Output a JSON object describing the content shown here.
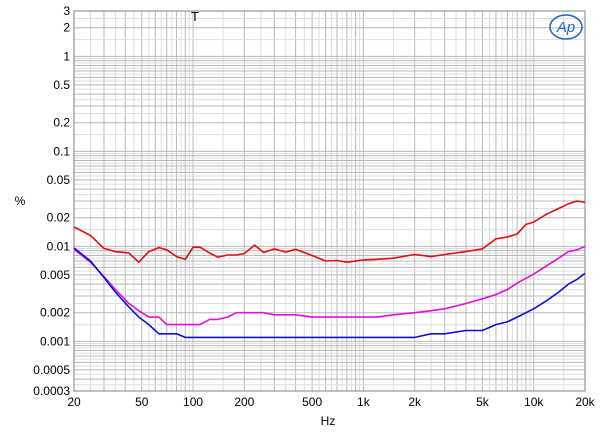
{
  "chart_data": {
    "type": "line",
    "title": "",
    "xlabel": "Hz",
    "ylabel": "%",
    "xscale": "log",
    "yscale": "log",
    "xlim": [
      20,
      20000
    ],
    "ylim": [
      0.0003,
      3
    ],
    "grid": true,
    "legend": "none",
    "annotation": "T",
    "logo": "Ap",
    "x_ticks": [
      {
        "v": 20,
        "label": "20"
      },
      {
        "v": 50,
        "label": "50"
      },
      {
        "v": 100,
        "label": "100"
      },
      {
        "v": 200,
        "label": "200"
      },
      {
        "v": 500,
        "label": "500"
      },
      {
        "v": 1000,
        "label": "1k"
      },
      {
        "v": 2000,
        "label": "2k"
      },
      {
        "v": 5000,
        "label": "5k"
      },
      {
        "v": 10000,
        "label": "10k"
      },
      {
        "v": 20000,
        "label": "20k"
      }
    ],
    "y_ticks": [
      {
        "v": 3,
        "label": "3"
      },
      {
        "v": 2,
        "label": "2"
      },
      {
        "v": 1,
        "label": "1"
      },
      {
        "v": 0.5,
        "label": "0.5"
      },
      {
        "v": 0.2,
        "label": "0.2"
      },
      {
        "v": 0.1,
        "label": "0.1"
      },
      {
        "v": 0.05,
        "label": "0.05"
      },
      {
        "v": 0.02,
        "label": "0.02"
      },
      {
        "v": 0.01,
        "label": "0.01"
      },
      {
        "v": 0.005,
        "label": "0.005"
      },
      {
        "v": 0.002,
        "label": "0.002"
      },
      {
        "v": 0.001,
        "label": "0.001"
      },
      {
        "v": 0.0005,
        "label": "0.0005"
      },
      {
        "v": 0.0003,
        "label": "0.0003"
      }
    ],
    "series": [
      {
        "color": "#e01010",
        "x": [
          20,
          25,
          30,
          35,
          42,
          48,
          55,
          63,
          70,
          80,
          90,
          100,
          110,
          125,
          140,
          160,
          180,
          200,
          230,
          260,
          300,
          350,
          400,
          500,
          600,
          700,
          800,
          1000,
          1200,
          1500,
          2000,
          2500,
          3000,
          4000,
          5000,
          6000,
          7000,
          8000,
          9000,
          10000,
          12000,
          14000,
          16000,
          18000,
          20000
        ],
        "y": [
          0.016,
          0.013,
          0.0095,
          0.0088,
          0.0085,
          0.0068,
          0.0088,
          0.0097,
          0.0092,
          0.0078,
          0.0073,
          0.0098,
          0.0098,
          0.0085,
          0.0077,
          0.0081,
          0.0081,
          0.0084,
          0.0103,
          0.0086,
          0.0094,
          0.0087,
          0.0093,
          0.008,
          0.007,
          0.0071,
          0.0068,
          0.0072,
          0.0073,
          0.0075,
          0.0082,
          0.0078,
          0.0082,
          0.0088,
          0.0094,
          0.012,
          0.0125,
          0.0135,
          0.017,
          0.018,
          0.022,
          0.025,
          0.028,
          0.03,
          0.029
        ]
      },
      {
        "color": "#e010e0",
        "x": [
          20,
          25,
          30,
          35,
          42,
          48,
          55,
          63,
          70,
          80,
          90,
          100,
          110,
          125,
          140,
          160,
          180,
          200,
          230,
          260,
          300,
          350,
          400,
          500,
          600,
          700,
          800,
          1000,
          1200,
          1500,
          2000,
          2500,
          3000,
          4000,
          5000,
          6000,
          7000,
          8000,
          10000,
          12000,
          14000,
          16000,
          18000,
          20000
        ],
        "y": [
          0.0093,
          0.0068,
          0.0048,
          0.0035,
          0.0025,
          0.0021,
          0.0018,
          0.0018,
          0.0015,
          0.0015,
          0.0015,
          0.0015,
          0.0015,
          0.0017,
          0.0017,
          0.0018,
          0.002,
          0.002,
          0.002,
          0.002,
          0.0019,
          0.0019,
          0.0019,
          0.0018,
          0.0018,
          0.0018,
          0.0018,
          0.0018,
          0.0018,
          0.0019,
          0.002,
          0.0021,
          0.0022,
          0.0025,
          0.0028,
          0.0031,
          0.0035,
          0.0041,
          0.0051,
          0.0063,
          0.0075,
          0.0088,
          0.0092,
          0.01
        ]
      },
      {
        "color": "#1010d0",
        "x": [
          20,
          25,
          30,
          35,
          42,
          48,
          55,
          63,
          70,
          80,
          90,
          100,
          110,
          125,
          140,
          160,
          180,
          200,
          230,
          260,
          300,
          350,
          400,
          500,
          600,
          700,
          800,
          1000,
          1200,
          1500,
          2000,
          2500,
          3000,
          4000,
          5000,
          6000,
          7000,
          8000,
          10000,
          12000,
          14000,
          16000,
          18000,
          20000
        ],
        "y": [
          0.0096,
          0.007,
          0.0047,
          0.0033,
          0.0023,
          0.0018,
          0.0015,
          0.0012,
          0.0012,
          0.0012,
          0.0011,
          0.0011,
          0.0011,
          0.0011,
          0.0011,
          0.0011,
          0.0011,
          0.0011,
          0.0011,
          0.0011,
          0.0011,
          0.0011,
          0.0011,
          0.0011,
          0.0011,
          0.0011,
          0.0011,
          0.0011,
          0.0011,
          0.0011,
          0.0011,
          0.0012,
          0.0012,
          0.0013,
          0.0013,
          0.0015,
          0.0016,
          0.0018,
          0.0022,
          0.0027,
          0.0033,
          0.004,
          0.0045,
          0.0052
        ]
      }
    ]
  }
}
